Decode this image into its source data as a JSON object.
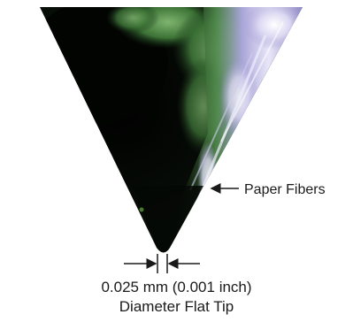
{
  "annotations": {
    "fibers_label": "Paper Fibers",
    "caption_line1": "0.025 mm (0.001 inch)",
    "caption_line2": "Diameter Flat Tip"
  },
  "colors": {
    "background": "#ffffff",
    "tip_dark": "#050805",
    "tip_green": "#3f7a3a",
    "tip_lavender": "#b5b0e0",
    "tip_white": "#f3f0fb",
    "annotation": "#1a1a1a"
  }
}
